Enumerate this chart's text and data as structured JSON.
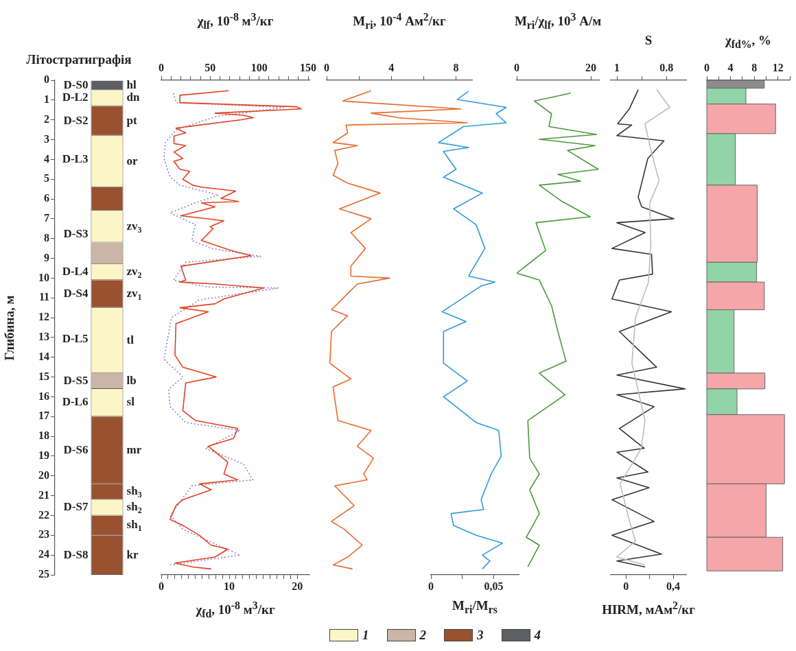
{
  "chart_data": [
    {
      "type": "bar",
      "stacked": true,
      "title": "Літостратиграфія",
      "ylabel": "Глибина, м",
      "categories": [
        null
      ],
      "ylim": [
        25,
        0
      ],
      "yticks": [
        0,
        1,
        2,
        3,
        4,
        5,
        6,
        7,
        8,
        9,
        10,
        11,
        12,
        13,
        14,
        15,
        16,
        17,
        18,
        19,
        20,
        21,
        22,
        23,
        24,
        25
      ],
      "tick_labels": "y",
      "series": [
        {
          "name": "hl",
          "color": "#5d5f63",
          "values": [
            0.5
          ]
        },
        {
          "name": "dn",
          "color": "#fcf6c6",
          "values": [
            0.8
          ]
        },
        {
          "name": "pt",
          "color": "#995230",
          "values": [
            1.5
          ]
        },
        {
          "name": "or",
          "color": "#fcf6c6",
          "values": [
            2.6
          ]
        },
        {
          "color": "#995230",
          "values": [
            1.2
          ]
        },
        {
          "name": "zv$_{3}$",
          "color": "#fcf6c6",
          "values": [
            1.6
          ]
        },
        {
          "color": "#cbb5a6",
          "values": [
            1.1
          ]
        },
        {
          "name": "zv$_{2}$",
          "color": "#fcf6c6",
          "values": [
            0.8
          ]
        },
        {
          "name": "zv$_{1}$",
          "color": "#995230",
          "values": [
            1.4
          ]
        },
        {
          "name": "tl",
          "color": "#fcf6c6",
          "values": [
            3.3
          ]
        },
        {
          "name": "lb",
          "color": "#cbb5a6",
          "values": [
            0.8
          ]
        },
        {
          "name": "sl",
          "color": "#fcf6c6",
          "values": [
            1.4
          ]
        },
        {
          "name": "mr",
          "color": "#995230",
          "values": [
            3.4
          ]
        },
        {
          "name": "sh$_{3}$",
          "color": "#995230",
          "values": [
            0.8
          ]
        },
        {
          "name": "sh$_{2}$",
          "color": "#fcf6c6",
          "values": [
            0.8
          ]
        },
        {
          "name": "sh$_{1}$",
          "color": "#995230",
          "values": [
            1.0
          ]
        },
        {
          "name": "kr",
          "color": "#995230",
          "values": [
            2.0
          ]
        }
      ],
      "annotations": [
        "D-S0",
        "D-L2",
        "D-S2",
        "D-L3",
        "D-S3",
        "D-L4",
        "D-S4",
        "D-L5",
        "D-S5",
        "D-L6",
        "D-S6",
        "D-S7",
        "D-S8",
        "1",
        "2",
        "3",
        "4"
      ]
    },
    {
      "type": "line",
      "x2label": "χ$_{lf}$, 10$^{-8}$ м$^{3}$/кг",
      "xlabel": "χ$_{fd}$, 10$^{-8}$ м$^{3}$/кг",
      "x2lim": [
        0,
        151.4
      ],
      "x2ticks": [
        0,
        {
          "value": 10,
          "label": null
        },
        {
          "value": 20,
          "label": null
        },
        {
          "value": 30,
          "label": null
        },
        {
          "value": 40,
          "label": null
        },
        50,
        {
          "value": 60,
          "label": null
        },
        {
          "value": 70,
          "label": null
        },
        {
          "value": 80,
          "label": null
        },
        {
          "value": 90,
          "label": null
        },
        100,
        {
          "value": 110,
          "label": null
        },
        {
          "value": 120,
          "label": null
        },
        {
          "value": 130,
          "label": null
        },
        {
          "value": 140,
          "label": null
        },
        150
      ],
      "xlim": [
        0,
        21.8
      ],
      "xticks": [
        0,
        {
          "value": 1,
          "label": null
        },
        {
          "value": 2,
          "label": null
        },
        {
          "value": 3,
          "label": null
        },
        {
          "value": 4,
          "label": null
        },
        {
          "value": 5,
          "label": null
        },
        {
          "value": 6,
          "label": null
        },
        {
          "value": 7,
          "label": null
        },
        {
          "value": 8,
          "label": null
        },
        {
          "value": 9,
          "label": null
        },
        10,
        {
          "value": 11,
          "label": null
        },
        {
          "value": 12,
          "label": null
        },
        {
          "value": 13,
          "label": null
        },
        {
          "value": 14,
          "label": null
        },
        {
          "value": 15,
          "label": null
        },
        {
          "value": 16,
          "label": null
        },
        {
          "value": 17,
          "label": null
        },
        {
          "value": 18,
          "label": null
        },
        {
          "value": 19,
          "label": null
        },
        20
      ],
      "ylim": [
        25,
        0
      ],
      "tick_labels": "x",
      "series": [
        {
          "color": "#e2401e",
          "axis": "x2",
          "x": [
            69,
            19,
            19,
            138,
            143,
            55,
            84,
            94,
            81,
            32,
            15,
            25,
            13,
            13,
            25,
            13,
            22,
            13,
            19,
            29,
            22,
            32,
            41,
            76,
            61,
            79,
            41,
            55,
            20,
            64,
            50,
            53,
            41,
            71,
            92,
            20,
            25,
            19,
            55,
            105,
            64,
            55,
            19,
            48,
            15,
            14,
            22,
            56,
            25,
            22,
            35,
            78,
            74,
            48,
            68,
            64,
            78,
            39,
            51,
            22,
            15,
            9,
            22,
            39,
            51,
            68,
            55,
            14,
            32,
            51
          ],
          "values": [
            0.53,
            0.76,
            1.13,
            1.34,
            1.45,
            1.66,
            1.77,
            1.89,
            2.0,
            2.31,
            2.42,
            2.66,
            2.82,
            3.2,
            3.3,
            3.63,
            3.95,
            4.1,
            4.5,
            4.6,
            5.0,
            5.3,
            5.4,
            5.6,
            5.97,
            6.13,
            6.2,
            6.4,
            6.85,
            7.1,
            7.4,
            7.5,
            8.1,
            8.6,
            8.87,
            9.4,
            10.1,
            10.2,
            10.3,
            10.5,
            11.05,
            11.3,
            11.5,
            11.7,
            12.3,
            13.9,
            14.5,
            15.0,
            15.3,
            16.7,
            17.2,
            17.6,
            18.1,
            18.5,
            19.3,
            19.9,
            20.2,
            20.4,
            20.7,
            21.2,
            21.5,
            22.2,
            22.5,
            23.0,
            23.5,
            23.7,
            24.1,
            24.4,
            24.6,
            24.7
          ]
        },
        {
          "color": "#8a7fd0",
          "line_style": "dotted",
          "x": [
            1.8,
            2.2,
            18,
            7.9,
            2.2,
            0.6,
            0.4,
            1.3,
            2.7,
            8.4,
            5.0,
            1.3,
            5.0,
            4.5,
            7.4,
            14.6,
            3.6,
            1.8,
            7.0,
            17.3,
            5.6,
            1.5,
            0.4,
            3.2,
            1.1,
            1.3,
            3.6,
            11.6,
            6.5,
            12.1,
            13.5,
            4.5,
            1.3,
            3.2,
            11.6,
            1.3
          ],
          "values": [
            0.65,
            1.13,
            1.37,
            1.85,
            2.5,
            3.15,
            3.95,
            4.9,
            5.3,
            5.8,
            6.2,
            6.7,
            7.3,
            8.1,
            8.5,
            8.9,
            9.2,
            10.1,
            10.45,
            10.5,
            11.1,
            12.0,
            14.1,
            15.0,
            15.6,
            16.5,
            17.3,
            17.7,
            18.6,
            19.4,
            20.2,
            20.5,
            22.0,
            22.7,
            24.0,
            24.5
          ]
        }
      ]
    },
    {
      "type": "line",
      "xlabel": "M$_{ri}$, 10$^{-4}$ Ам$^{2}$/кг",
      "xlim": [
        0,
        9
      ],
      "xticks": [
        0,
        {
          "value": 2,
          "label": null
        },
        4,
        {
          "value": 6,
          "label": null
        },
        8
      ],
      "ylim": [
        25,
        0
      ],
      "tick_labels": "x",
      "series": [
        {
          "color": "#e8692a",
          "x": [
            2.75,
            1.0,
            8.3,
            2.75,
            4.5,
            8.7,
            1.2,
            1.3,
            0.4,
            1.9,
            0.5,
            0.7,
            0.4,
            1.3,
            3.3,
            0.8,
            2.75,
            1.5,
            2.4,
            1.5,
            1.5,
            3.9,
            1.9,
            0.3,
            1.3,
            0.3,
            0.2,
            1.5,
            0.4,
            0.7,
            2.75,
            1.9,
            2.9,
            2.3,
            2.5,
            0.5,
            1.7,
            0.3,
            1.1,
            2.2,
            1.3,
            0.4,
            1.6
          ],
          "values": [
            0.53,
            1.05,
            1.45,
            1.66,
            1.9,
            2.15,
            2.26,
            2.66,
            3.15,
            3.3,
            3.55,
            4.2,
            4.8,
            5.2,
            5.7,
            6.5,
            7.0,
            7.7,
            8.5,
            9.4,
            9.9,
            10.0,
            10.3,
            11.6,
            11.9,
            12.7,
            14.3,
            15.1,
            15.5,
            17.2,
            17.7,
            18.5,
            19.1,
            19.9,
            20.2,
            20.5,
            21.5,
            22.3,
            22.7,
            23.5,
            24.1,
            24.5,
            24.7
          ]
        }
      ]
    },
    {
      "type": "line",
      "xlabel": "M$_{ri}$/M$_{rs}$",
      "xlim": [
        0,
        0.07
      ],
      "xticks": [
        0,
        {
          "value": 0.025,
          "label": null
        },
        {
          "value": 0.05,
          "label": "0,05"
        }
      ],
      "ylim": [
        25,
        0
      ],
      "tick_labels": "x",
      "series": [
        {
          "color": "#2e9ad8",
          "x": [
            0.03,
            0.021,
            0.06,
            0.052,
            0.06,
            0.026,
            0.006,
            0.03,
            0.01,
            0.02,
            0.01,
            0.041,
            0.018,
            0.036,
            0.043,
            0.03,
            0.051,
            0.04,
            0.009,
            0.028,
            0.01,
            0.01,
            0.029,
            0.01,
            0.036,
            0.054,
            0.056,
            0.048,
            0.04,
            0.042,
            0.016,
            0.018,
            0.036,
            0.057,
            0.041,
            0.047,
            0.041
          ],
          "values": [
            0.56,
            0.97,
            1.37,
            1.69,
            2.15,
            2.34,
            3.15,
            3.4,
            3.6,
            4.5,
            4.9,
            5.7,
            6.5,
            7.3,
            8.5,
            9.9,
            10.2,
            10.4,
            11.7,
            12.2,
            12.7,
            14.3,
            15.2,
            16.0,
            17.3,
            17.7,
            19.0,
            19.9,
            21.2,
            21.7,
            21.9,
            22.5,
            23.0,
            23.4,
            24.0,
            24.3,
            24.7
          ]
        }
      ]
    },
    {
      "type": "line",
      "xlabel": "M$_{ri}$/χ$_{lf}$, 10$^{3}$ А/м",
      "xlim": [
        0,
        22.2
      ],
      "xticks": [
        0,
        20
      ],
      "ylim": [
        25,
        0
      ],
      "tick_labels": "x",
      "series": [
        {
          "color": "#4a9a3a",
          "x": [
            14.6,
            4.8,
            9.4,
            8.7,
            21.5,
            6.1,
            21.1,
            13.7,
            22.0,
            11.1,
            17.2,
            6.1,
            12.0,
            19.8,
            5.2,
            7.8,
            0,
            6.1,
            9.4,
            11.1,
            13.3,
            6.1,
            13.0,
            3.0,
            3.5,
            6.1,
            3.5,
            6.1,
            2.6,
            6.1,
            3.0
          ],
          "values": [
            0.65,
            1.05,
            1.69,
            2.34,
            2.74,
            2.98,
            3.3,
            3.55,
            4.5,
            4.76,
            5.1,
            5.3,
            6.1,
            6.9,
            7.2,
            8.6,
            9.75,
            10.1,
            11.4,
            12.7,
            14.2,
            14.8,
            15.9,
            17.2,
            19.1,
            19.9,
            20.7,
            21.9,
            23.1,
            23.5,
            24.6
          ]
        }
      ]
    },
    {
      "type": "line",
      "x2label": "S",
      "xlabel": "HIRM, мАм$^{2}$/кг",
      "x2lim": [
        1.025,
        0.72
      ],
      "x2ticks": [
        1,
        {
          "value": 0.9,
          "label": null
        },
        0.8
      ],
      "xlim": [
        -0.13,
        0.51
      ],
      "xticks": [
        0,
        {
          "value": 0.2,
          "label": null
        },
        {
          "value": 0.4,
          "label": "0,4"
        }
      ],
      "ylim": [
        25,
        0
      ],
      "tick_labels": "x",
      "series": [
        {
          "color": "#bdbdbd",
          "x": [
            0.26,
            0.37,
            0.16,
            0.21,
            0.28,
            0.2,
            0.21,
            0.19,
            0.08,
            0.05,
            0.16,
            0.13,
            -0.05,
            0.03,
            0.08,
            -0.08,
            0.16
          ],
          "values": [
            0.48,
            1.37,
            2.2,
            3.5,
            5.1,
            6.2,
            8.3,
            10.2,
            12.0,
            14.3,
            17.2,
            18.6,
            20.4,
            22.3,
            23.3,
            24.1,
            24.5
          ]
        },
        {
          "color": "#333333",
          "axis": "x2",
          "x": [
            0.914,
            0.95,
            0.997,
            0.94,
            1.0,
            0.81,
            0.875,
            0.914,
            0.9,
            0.77,
            1.0,
            0.886,
            1.02,
            0.86,
            0.856,
            0.99,
            1.02,
            0.78,
            0.99,
            0.84,
            1.0,
            0.725,
            1.0,
            0.85,
            0.99,
            0.89,
            1.0,
            0.875,
            1.0,
            0.87,
            1.02,
            0.85,
            1.02,
            0.82,
            1.0,
            0.886
          ],
          "values": [
            0.48,
            1.45,
            2.2,
            2.26,
            2.8,
            3.06,
            3.95,
            5.9,
            6.4,
            7.0,
            7.2,
            7.7,
            8.5,
            8.8,
            9.8,
            10.1,
            11.05,
            11.7,
            12.7,
            14.5,
            14.9,
            15.6,
            15.9,
            16.5,
            17.6,
            18.6,
            18.8,
            19.8,
            20.1,
            20.6,
            21.2,
            22.3,
            23.0,
            23.95,
            24.3,
            24.6
          ]
        }
      ]
    },
    {
      "type": "histogram",
      "orientation": "horizontal",
      "xlabel": "χ$_{fd%}$, %",
      "xlim": [
        0,
        14
      ],
      "xticks": [
        0,
        {
          "value": 2,
          "label": null
        },
        4,
        {
          "value": 6,
          "label": null
        },
        8,
        {
          "value": 10,
          "label": null
        },
        12,
        {
          "value": 14,
          "label": null
        }
      ],
      "ylim": [
        25,
        0
      ],
      "tick_labels": "x",
      "bins": [
        0,
        0.4,
        1.2,
        2.7,
        5.3,
        9.2,
        10.2,
        11.6,
        14.8,
        15.6,
        16.9,
        20.4,
        23.1,
        24.8
      ],
      "values": [
        9.7,
        6.6,
        11.6,
        4.8,
        8.5,
        8.4,
        9.7,
        4.6,
        9.8,
        5.1,
        13.1,
        10.0,
        12.8
      ],
      "colors": [
        "#8c8c8c",
        "#93d3a8",
        "#f4a6a8",
        "#93d3a8",
        "#f4a6a8",
        "#93d3a8",
        "#f4a6a8",
        "#93d3a8",
        "#f4a6a8",
        "#93d3a8",
        "#f4a6a8",
        "#f4a6a8",
        "#f4a6a8"
      ]
    }
  ]
}
